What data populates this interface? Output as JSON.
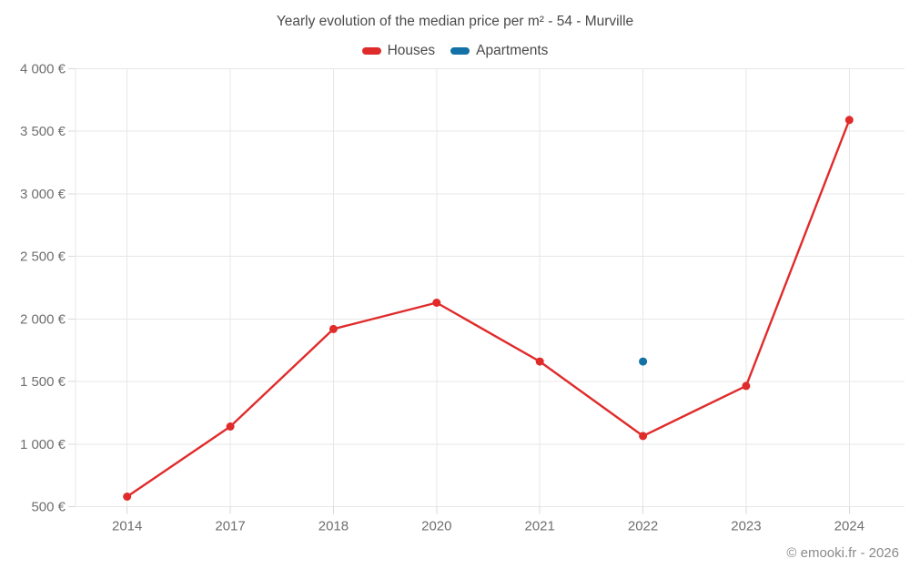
{
  "header": {
    "title": "Yearly evolution of the median price per m² - 54 - Murville"
  },
  "footer": {
    "credit": "© emooki.fr - 2026"
  },
  "colors": {
    "houses": "#e02b2b",
    "apartments": "#1371a6",
    "grid": "#e7e7e7",
    "tick": "#d8d8d8",
    "axis_text": "#6f6f6f",
    "title_text": "#4a4a4a"
  },
  "chart_data": {
    "type": "line",
    "title": "Yearly evolution of the median price per m² - 54 - Murville",
    "categories": [
      "2014",
      "2017",
      "2018",
      "2020",
      "2021",
      "2022",
      "2023",
      "2024"
    ],
    "series": [
      {
        "name": "Houses",
        "color": "#e02b2b",
        "values": [
          580,
          1140,
          1920,
          2130,
          1660,
          1065,
          1465,
          3590
        ]
      },
      {
        "name": "Apartments",
        "color": "#1371a6",
        "values": [
          null,
          null,
          null,
          null,
          null,
          1660,
          null,
          null
        ]
      }
    ],
    "xlabel": "",
    "ylabel": "",
    "ylim": [
      500,
      4000
    ],
    "ytick_step": 500,
    "ytick_labels": [
      "500 €",
      "1 000 €",
      "1 500 €",
      "2 000 €",
      "2 500 €",
      "3 000 €",
      "3 500 €",
      "4 000 €"
    ],
    "grid": true,
    "legend_position": "top"
  }
}
